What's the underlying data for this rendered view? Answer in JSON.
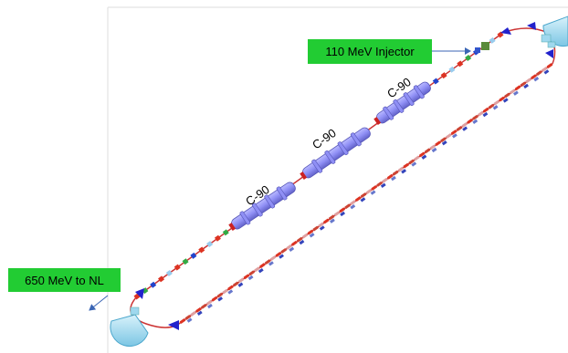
{
  "labels": {
    "injector": "110 MeV Injector",
    "extraction": "650 MeV to NL"
  },
  "cryomodules": [
    {
      "id": "cm1",
      "label": "C-90"
    },
    {
      "id": "cm2",
      "label": "C-90"
    },
    {
      "id": "cm3",
      "label": "C-90"
    }
  ],
  "colors": {
    "callout_bg": "#22cc33",
    "cryomodule": "#8f8ff5",
    "beamline": "#cc3333",
    "arc_dipole": "#2222cc",
    "spreader": "#9fd8ee",
    "frame": "#dddddd",
    "arrow": "#3b66b5"
  },
  "icons": [
    "arrow-icon",
    "dipole-icon",
    "quadrupole-icon",
    "spreader-icon"
  ]
}
